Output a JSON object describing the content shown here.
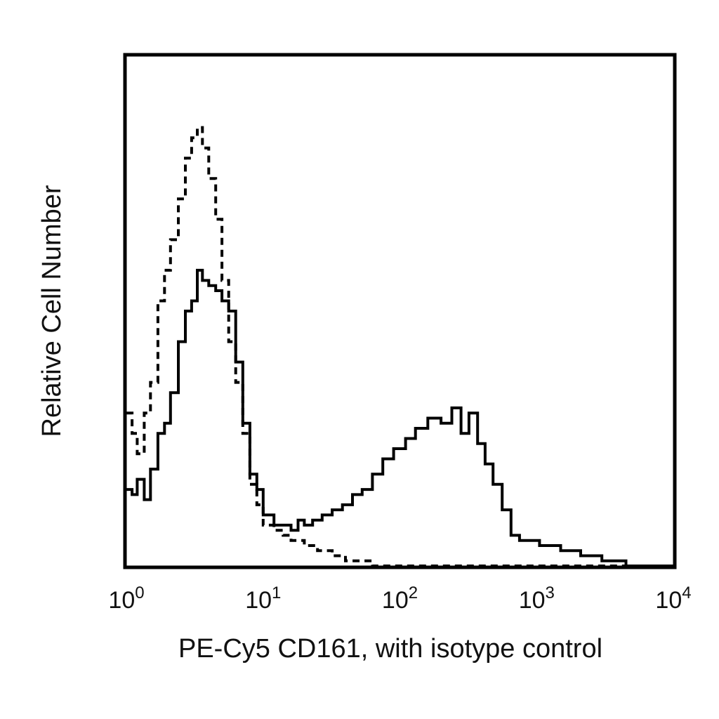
{
  "chart_data": {
    "type": "line",
    "title": "",
    "xlabel": "PE-Cy5 CD161, with isotype control",
    "ylabel": "Relative Cell Number",
    "x_scale": "log",
    "xlim": [
      1,
      10000
    ],
    "ylim": [
      0,
      100
    ],
    "grid": false,
    "legend": "none",
    "x_ticks": [
      {
        "base": "10",
        "exp": "0",
        "value": 1
      },
      {
        "base": "10",
        "exp": "1",
        "value": 10
      },
      {
        "base": "10",
        "exp": "2",
        "value": 100
      },
      {
        "base": "10",
        "exp": "3",
        "value": 1000
      },
      {
        "base": "10",
        "exp": "4",
        "value": 10000
      }
    ],
    "series": [
      {
        "style": "solid",
        "color": "#000000",
        "x": [
          1.0,
          1.1,
          1.2,
          1.35,
          1.5,
          1.7,
          1.9,
          2.1,
          2.4,
          2.7,
          3.0,
          3.3,
          3.6,
          4.0,
          4.5,
          5.0,
          5.6,
          6.3,
          7.1,
          8.0,
          9.0,
          10,
          12,
          14,
          16,
          18,
          20,
          23,
          27,
          32,
          38,
          45,
          53,
          63,
          75,
          90,
          110,
          130,
          160,
          200,
          240,
          280,
          320,
          370,
          420,
          480,
          560,
          650,
          750,
          900,
          1050,
          1250,
          1500,
          1800,
          2100,
          2500,
          3000,
          3500,
          4500,
          6000,
          8000,
          10000
        ],
        "y": [
          15,
          14,
          17,
          13,
          19,
          26,
          28,
          34,
          44,
          50,
          52,
          58,
          56,
          55,
          54,
          52,
          50,
          40,
          28,
          18,
          15,
          10,
          8,
          8,
          7,
          9,
          8,
          9,
          10,
          11,
          12,
          14,
          15,
          18,
          21,
          23,
          25,
          27,
          29,
          28,
          31,
          26,
          30,
          24,
          20,
          16,
          11,
          6,
          5,
          5,
          4,
          4,
          3,
          3,
          2,
          2,
          1,
          1,
          0,
          0,
          0,
          0
        ]
      },
      {
        "style": "dashed",
        "color": "#000000",
        "x": [
          1.0,
          1.1,
          1.2,
          1.35,
          1.5,
          1.7,
          1.9,
          2.1,
          2.4,
          2.7,
          3.0,
          3.3,
          3.6,
          4.0,
          4.5,
          5.0,
          5.6,
          6.3,
          7.1,
          8.0,
          9.0,
          10,
          12,
          14,
          16,
          18,
          20,
          25,
          32,
          40,
          50,
          63,
          80,
          100,
          130,
          160,
          200,
          300,
          500,
          1000,
          3000,
          10000
        ],
        "y": [
          30,
          26,
          22,
          30,
          36,
          52,
          58,
          64,
          72,
          80,
          84,
          86,
          82,
          76,
          68,
          56,
          44,
          36,
          26,
          16,
          12,
          8,
          7,
          6,
          5,
          5,
          4,
          3,
          2,
          1,
          1,
          0,
          0,
          0,
          0,
          0,
          0,
          0,
          0,
          0,
          0,
          0
        ]
      }
    ]
  }
}
